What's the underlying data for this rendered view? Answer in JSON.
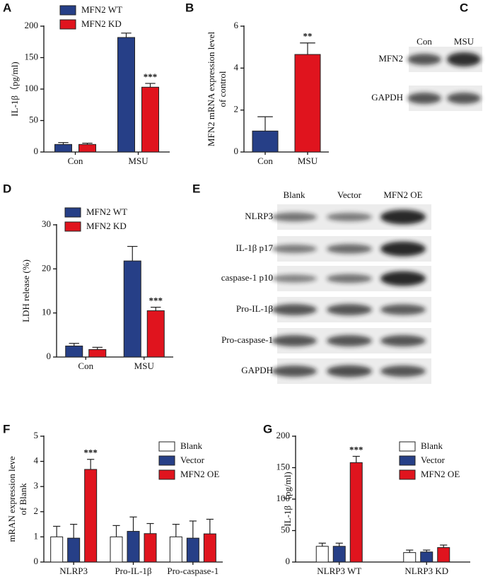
{
  "chart_data": [
    {
      "panel": "A",
      "type": "bar",
      "ylabel": "IL-1β（pg/ml)",
      "categories": [
        "Con",
        "MSU"
      ],
      "series": [
        {
          "name": "MFN2 WT",
          "color": "#263f87",
          "values": [
            12,
            182
          ],
          "errors": [
            3,
            7
          ]
        },
        {
          "name": "MFN2 KD",
          "color": "#e0141e",
          "values": [
            12,
            103
          ],
          "errors": [
            2,
            6
          ]
        }
      ],
      "ylim": [
        0,
        200
      ],
      "yticks": [
        0,
        50,
        100,
        150,
        200
      ],
      "annotations": [
        {
          "text": "***",
          "category": "MSU",
          "series": "MFN2 KD"
        }
      ]
    },
    {
      "panel": "B",
      "type": "bar",
      "ylabel": [
        "MFN2 mRNA expression level",
        "of control"
      ],
      "categories": [
        "Con",
        "MSU"
      ],
      "values": [
        1,
        4.65
      ],
      "errors": [
        0.68,
        0.55
      ],
      "colors": [
        "#263f87",
        "#e0141e"
      ],
      "ylim": [
        0,
        6
      ],
      "yticks": [
        0,
        2,
        4,
        6
      ],
      "annotations": [
        {
          "text": "**",
          "category": "MSU"
        }
      ]
    },
    {
      "panel": "D",
      "type": "bar",
      "ylabel": "LDH release (%)",
      "categories": [
        "Con",
        "MSU"
      ],
      "series": [
        {
          "name": "MFN2 WT",
          "color": "#263f87",
          "values": [
            2.5,
            21.8
          ],
          "errors": [
            0.6,
            3.3
          ]
        },
        {
          "name": "MFN2 KD",
          "color": "#e0141e",
          "values": [
            1.7,
            10.5
          ],
          "errors": [
            0.5,
            0.8
          ]
        }
      ],
      "ylim": [
        0,
        30
      ],
      "yticks": [
        0,
        10,
        20,
        30
      ],
      "annotations": [
        {
          "text": "***",
          "category": "MSU",
          "series": "MFN2 KD"
        }
      ]
    },
    {
      "panel": "F",
      "type": "bar",
      "ylabel": [
        "mRAN expression leve",
        "of Blank"
      ],
      "categories": [
        "NLRP3",
        "Pro-IL-1β",
        "Pro-caspase-1"
      ],
      "series": [
        {
          "name": "Blank",
          "color": "#ffffff",
          "values": [
            1,
            1,
            1
          ],
          "errors": [
            0.42,
            0.45,
            0.5
          ]
        },
        {
          "name": "Vector",
          "color": "#263f87",
          "values": [
            0.95,
            1.22,
            0.95
          ],
          "errors": [
            0.55,
            0.57,
            0.68
          ]
        },
        {
          "name": "MFN2 OE",
          "color": "#e0141e",
          "values": [
            3.68,
            1.13,
            1.12
          ],
          "errors": [
            0.4,
            0.4,
            0.58
          ]
        }
      ],
      "ylim": [
        0,
        5
      ],
      "yticks": [
        0,
        1,
        2,
        3,
        4,
        5
      ],
      "annotations": [
        {
          "text": "***",
          "category": "NLRP3",
          "series": "MFN2 OE"
        }
      ]
    },
    {
      "panel": "G",
      "type": "bar",
      "ylabel": "IL-1β（pg/ml)",
      "categories": [
        "NLRP3 WT",
        "NLRP3 KD"
      ],
      "series": [
        {
          "name": "Blank",
          "color": "#ffffff",
          "values": [
            25,
            15
          ],
          "errors": [
            5,
            4
          ]
        },
        {
          "name": "Vector",
          "color": "#263f87",
          "values": [
            25,
            16
          ],
          "errors": [
            5,
            3
          ]
        },
        {
          "name": "MFN2 OE",
          "color": "#e0141e",
          "values": [
            158,
            23
          ],
          "errors": [
            10,
            4
          ]
        }
      ],
      "ylim": [
        0,
        200
      ],
      "yticks": [
        0,
        50,
        100,
        150,
        200
      ],
      "annotations": [
        {
          "text": "***",
          "category": "NLRP3 WT",
          "series": "MFN2 OE"
        }
      ]
    }
  ],
  "blots": [
    {
      "panel": "C",
      "columns": [
        "Con",
        "MSU"
      ],
      "rows": [
        "MFN2",
        "GAPDH"
      ]
    },
    {
      "panel": "E",
      "columns": [
        "Blank",
        "Vector",
        "MFN2 OE"
      ],
      "rows": [
        "NLRP3",
        "IL-1β p17",
        "caspase-1 p10",
        "Pro-IL-1β",
        "Pro-caspase-1",
        "GAPDH"
      ]
    }
  ]
}
